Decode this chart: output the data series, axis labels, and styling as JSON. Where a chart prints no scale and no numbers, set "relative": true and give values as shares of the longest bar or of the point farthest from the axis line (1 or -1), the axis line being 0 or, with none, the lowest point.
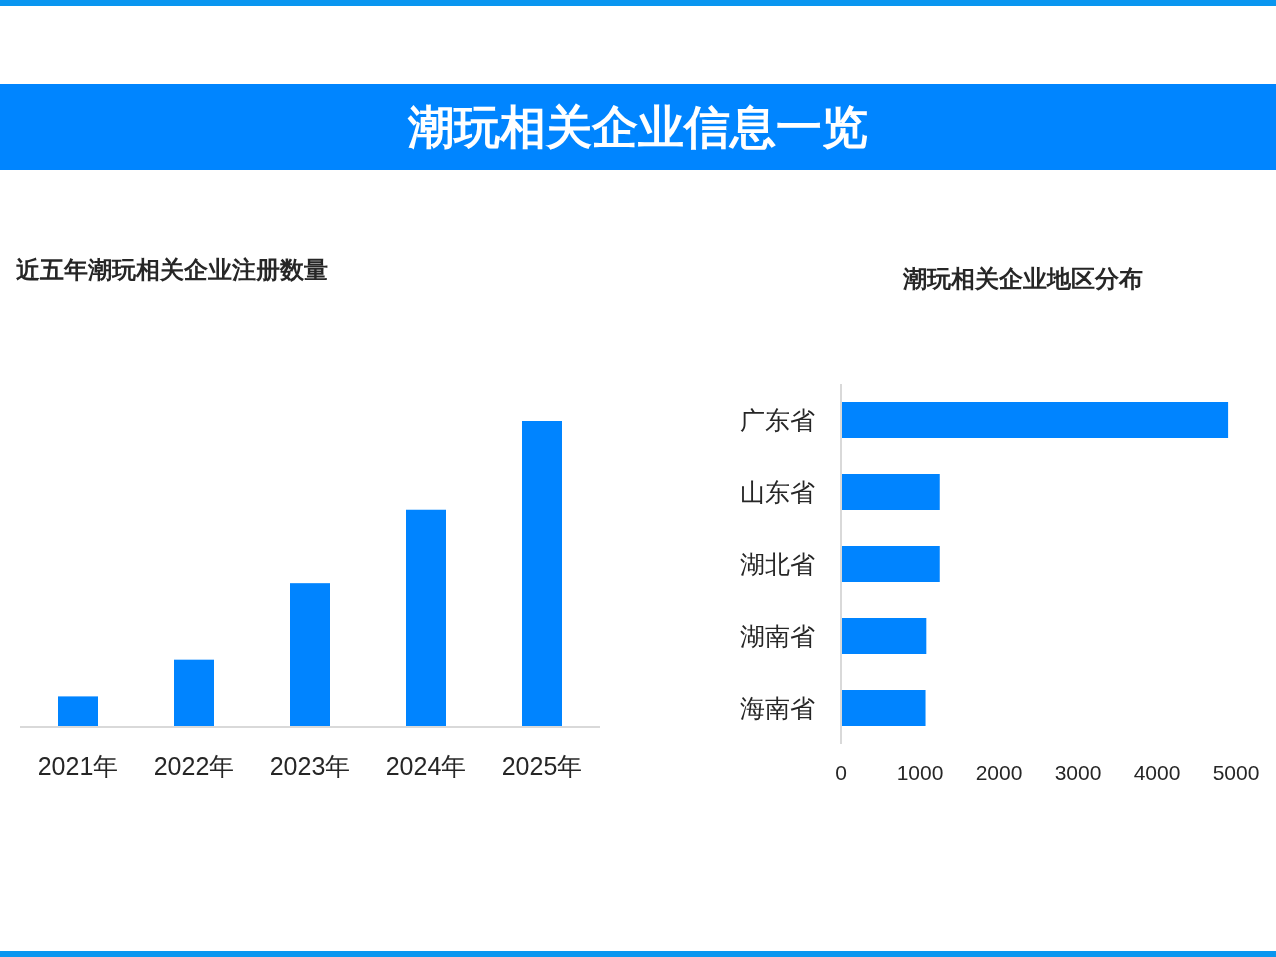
{
  "chart_data": [
    {
      "type": "other",
      "title": "潮玩相关企业信息一览"
    },
    {
      "type": "bar",
      "title": "近五年潮玩相关企业注册数量",
      "categories": [
        "2021年",
        "2022年",
        "2023年",
        "2024年",
        "2025年"
      ],
      "relative": true,
      "series": [
        {
          "color": "#0084ff",
          "values": [
            0.1,
            0.22,
            0.47,
            0.71,
            1
          ]
        }
      ]
    },
    {
      "type": "bar",
      "orientation": "horizontal",
      "title": "潮玩相关企业地区分布",
      "categories": [
        "广东省",
        "山东省",
        "湖北省",
        "湖南省",
        "海南省"
      ],
      "series": [
        {
          "color": "#0084ff",
          "values": [
            4900,
            1250,
            1250,
            1080,
            1070
          ]
        }
      ],
      "xlim": [
        0,
        5000
      ],
      "xticks": [
        0,
        1000,
        2000,
        3000,
        4000,
        5000
      ]
    }
  ]
}
